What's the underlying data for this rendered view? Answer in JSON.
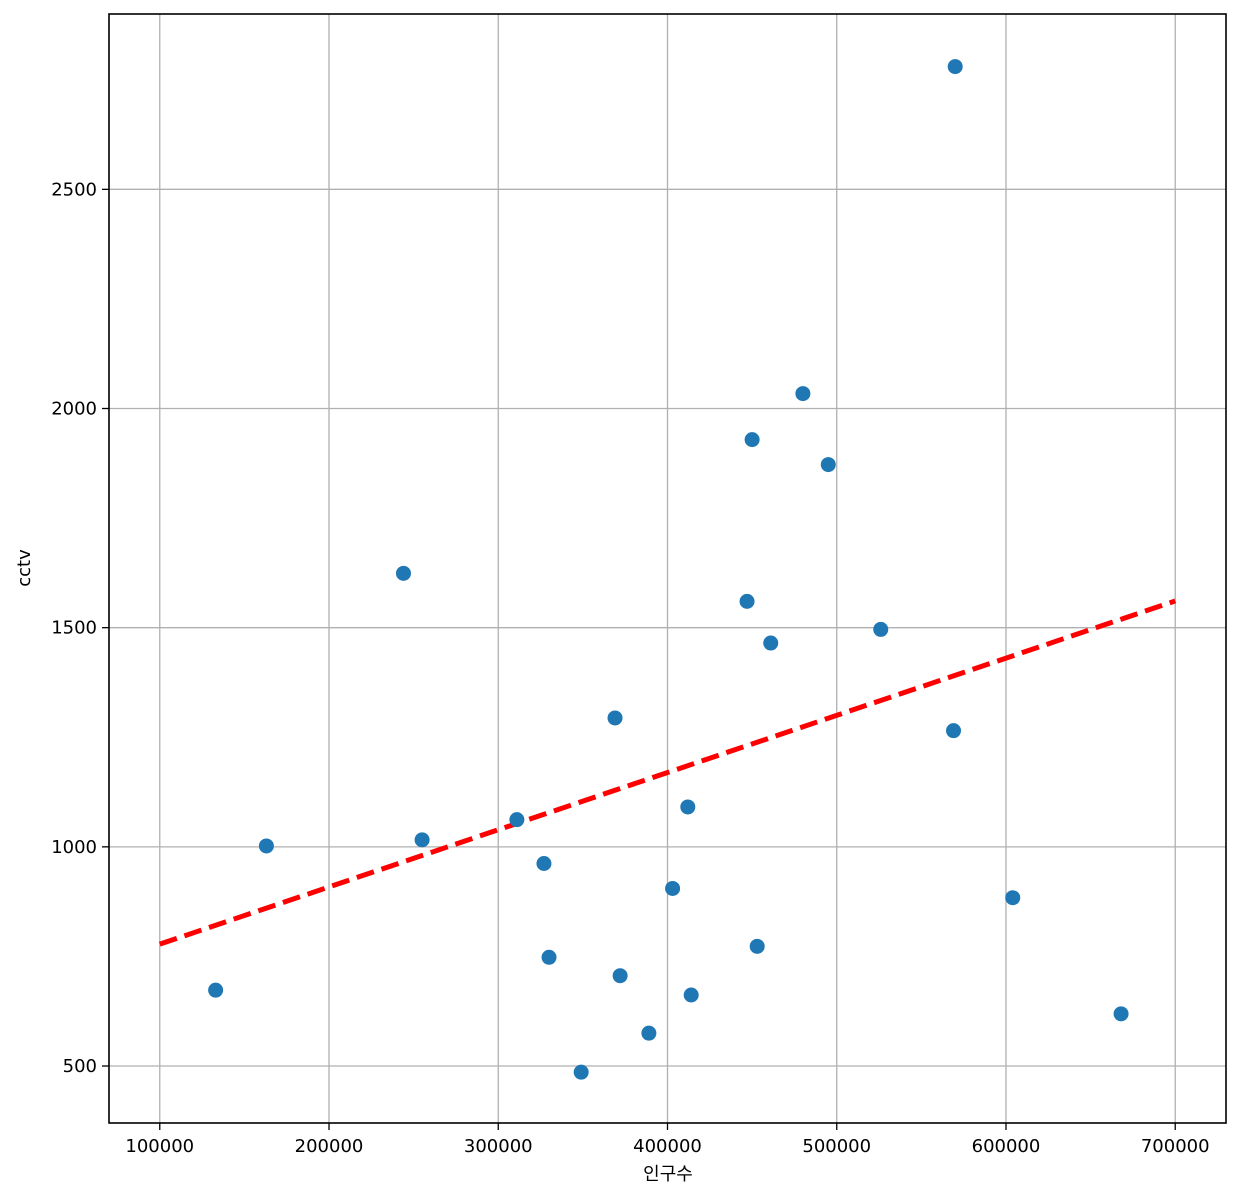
{
  "chart_data": {
    "type": "scatter",
    "xlabel": "인구수",
    "ylabel": "cctv",
    "xlim": [
      70000,
      730000
    ],
    "ylim": [
      370,
      2900
    ],
    "xticks": [
      100000,
      200000,
      300000,
      400000,
      500000,
      600000,
      700000
    ],
    "yticks": [
      500,
      1000,
      1500,
      2000,
      2500
    ],
    "grid": true,
    "points": [
      {
        "x": 570000,
        "y": 2780
      },
      {
        "x": 480000,
        "y": 2034
      },
      {
        "x": 450000,
        "y": 1929
      },
      {
        "x": 495000,
        "y": 1872
      },
      {
        "x": 244000,
        "y": 1624
      },
      {
        "x": 447000,
        "y": 1560
      },
      {
        "x": 526000,
        "y": 1496
      },
      {
        "x": 461000,
        "y": 1465
      },
      {
        "x": 369000,
        "y": 1294
      },
      {
        "x": 569000,
        "y": 1265
      },
      {
        "x": 412000,
        "y": 1091
      },
      {
        "x": 311000,
        "y": 1062
      },
      {
        "x": 255000,
        "y": 1016
      },
      {
        "x": 163000,
        "y": 1002
      },
      {
        "x": 327000,
        "y": 962
      },
      {
        "x": 403000,
        "y": 905
      },
      {
        "x": 604000,
        "y": 884
      },
      {
        "x": 453000,
        "y": 773
      },
      {
        "x": 330000,
        "y": 748
      },
      {
        "x": 372000,
        "y": 706
      },
      {
        "x": 133000,
        "y": 673
      },
      {
        "x": 414000,
        "y": 662
      },
      {
        "x": 668000,
        "y": 619
      },
      {
        "x": 389000,
        "y": 575
      },
      {
        "x": 349000,
        "y": 486
      }
    ],
    "fit_line": {
      "x": [
        100000,
        700000
      ],
      "y": [
        778,
        1561
      ]
    },
    "colors": {
      "points": "#1f77b4",
      "fit_line": "#ff0000",
      "grid": "#b0b0b0"
    }
  }
}
